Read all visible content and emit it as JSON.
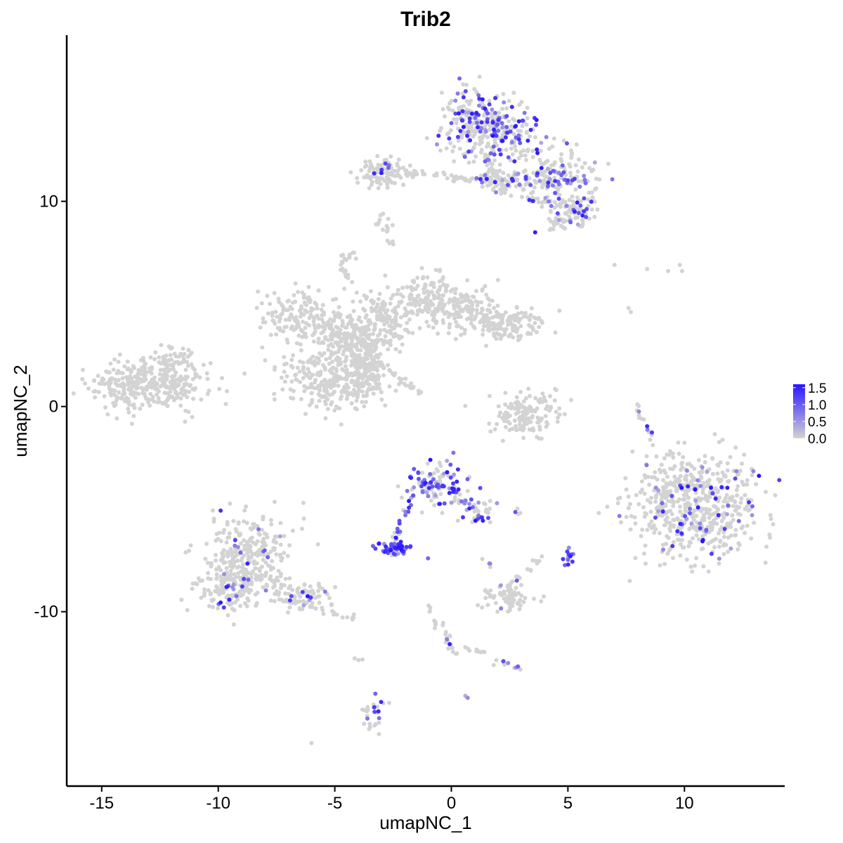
{
  "chart_data": {
    "type": "scatter",
    "title": "Trib2",
    "xlabel": "umapNC_1",
    "ylabel": "umapNC_2",
    "xlim": [
      -16.5,
      14.3
    ],
    "ylim": [
      -18.5,
      18.1
    ],
    "x_ticks": [
      -15,
      -10,
      -5,
      0,
      5,
      10
    ],
    "x_tick_labels": [
      "-15",
      "-10",
      "-5",
      "0",
      "5",
      "10"
    ],
    "y_ticks": [
      -10,
      0,
      10
    ],
    "y_tick_labels": [
      "-10",
      "0",
      "10"
    ],
    "grid": false,
    "legend": {
      "placement": "right",
      "type": "colorbar",
      "title": "",
      "min": 0,
      "max": 1.6,
      "low_color": "#d3d3d3",
      "high_color": "#2a14ff",
      "ticks": [
        0.0,
        0.5,
        1.0,
        1.5
      ],
      "tick_labels": [
        "0.0",
        "0.5",
        "1.0",
        "1.5"
      ]
    },
    "colors": {
      "low": "#d3d3d3",
      "high": "#2a14ff",
      "point_size": 3
    },
    "clusters": [
      {
        "name": "a",
        "cx": -12.9,
        "cy": 1.1,
        "sx": 1.25,
        "sy": 0.65,
        "n": 360,
        "frac": 0.0
      },
      {
        "name": "b1",
        "cx": -6.5,
        "cy": 4.5,
        "sx": 0.9,
        "sy": 0.6,
        "n": 140,
        "frac": 0.0
      },
      {
        "name": "b2",
        "cx": -4.4,
        "cy": 3.6,
        "sx": 0.8,
        "sy": 0.55,
        "n": 140,
        "frac": 0.0
      },
      {
        "name": "b3",
        "cx": -5.3,
        "cy": 1.3,
        "sx": 1.0,
        "sy": 0.8,
        "n": 240,
        "frac": 0.0
      },
      {
        "name": "b4",
        "cx": -3.7,
        "cy": 1.6,
        "sx": 0.5,
        "sy": 0.7,
        "n": 150,
        "frac": 0.0
      },
      {
        "name": "b5",
        "cx": -2.6,
        "cy": 4.5,
        "sx": 0.7,
        "sy": 0.6,
        "n": 110,
        "frac": 0.0
      },
      {
        "name": "b6",
        "cx": -1.1,
        "cy": 5.5,
        "sx": 0.5,
        "sy": 0.6,
        "n": 90,
        "frac": 0.0
      },
      {
        "name": "b7",
        "cx": 0.5,
        "cy": 4.8,
        "sx": 0.8,
        "sy": 0.55,
        "n": 130,
        "frac": 0.0
      },
      {
        "name": "b8",
        "cx": 2.3,
        "cy": 4.0,
        "sx": 0.9,
        "sy": 0.45,
        "n": 150,
        "frac": 0.0
      },
      {
        "name": "b9",
        "cx": -4.0,
        "cy": 3.0,
        "sx": 0.5,
        "sy": 0.4,
        "n": 80,
        "frac": 0.0
      },
      {
        "name": "c1",
        "cx": 0.9,
        "cy": 13.8,
        "sx": 0.6,
        "sy": 0.8,
        "n": 170,
        "frac": 0.32
      },
      {
        "name": "c2",
        "cx": 2.2,
        "cy": 13.4,
        "sx": 0.7,
        "sy": 0.8,
        "n": 150,
        "frac": 0.35
      },
      {
        "name": "c3",
        "cx": 4.3,
        "cy": 11.3,
        "sx": 1.0,
        "sy": 0.65,
        "n": 170,
        "frac": 0.3
      },
      {
        "name": "c4",
        "cx": 5.3,
        "cy": 9.6,
        "sx": 0.5,
        "sy": 0.4,
        "n": 60,
        "frac": 0.25
      },
      {
        "name": "c5",
        "cx": -2.8,
        "cy": 11.4,
        "sx": 0.55,
        "sy": 0.35,
        "n": 110,
        "frac": 0.02
      },
      {
        "name": "c6",
        "cx": 1.8,
        "cy": 11.0,
        "sx": 0.6,
        "sy": 0.4,
        "n": 50,
        "frac": 0.1
      },
      {
        "name": "c7",
        "cx": 4.6,
        "cy": 8.9,
        "sx": 0.3,
        "sy": 0.25,
        "n": 20,
        "frac": 0.2
      },
      {
        "name": "d",
        "cx": 3.1,
        "cy": -0.4,
        "sx": 0.7,
        "sy": 0.55,
        "n": 140,
        "frac": 0.0
      },
      {
        "name": "e",
        "cx": 10.5,
        "cy": -4.8,
        "sx": 1.4,
        "sy": 1.3,
        "n": 560,
        "frac": 0.1
      },
      {
        "name": "f1",
        "cx": -8.7,
        "cy": -7.4,
        "sx": 1.0,
        "sy": 1.0,
        "n": 300,
        "frac": 0.06
      },
      {
        "name": "f2",
        "cx": -9.6,
        "cy": -9.0,
        "sx": 0.7,
        "sy": 0.5,
        "n": 100,
        "frac": 0.06
      },
      {
        "name": "f3",
        "cx": -6.4,
        "cy": -9.2,
        "sx": 0.8,
        "sy": 0.35,
        "n": 70,
        "frac": 0.04
      },
      {
        "name": "g1",
        "cx": -0.7,
        "cy": -3.7,
        "sx": 0.6,
        "sy": 0.55,
        "n": 110,
        "frac": 0.5
      },
      {
        "name": "g2",
        "cx": -2.5,
        "cy": -6.9,
        "sx": 0.3,
        "sy": 0.15,
        "n": 60,
        "frac": 0.95
      },
      {
        "name": "g3",
        "cx": 1.2,
        "cy": -5.0,
        "sx": 0.35,
        "sy": 0.4,
        "n": 25,
        "frac": 0.4
      },
      {
        "name": "h",
        "cx": 2.4,
        "cy": -9.3,
        "sx": 0.55,
        "sy": 0.35,
        "n": 70,
        "frac": 0.05
      },
      {
        "name": "i",
        "cx": 5.1,
        "cy": -7.4,
        "sx": 0.12,
        "sy": 0.2,
        "n": 14,
        "frac": 0.9
      },
      {
        "name": "j",
        "cx": -3.3,
        "cy": -15.0,
        "sx": 0.25,
        "sy": 0.45,
        "n": 28,
        "frac": 0.15
      },
      {
        "name": "k",
        "cx": -12.0,
        "cy": 2.3,
        "sx": 0.5,
        "sy": 0.3,
        "n": 40,
        "frac": 0.0
      },
      {
        "name": "l",
        "cx": -4.4,
        "cy": 7.3,
        "sx": 0.2,
        "sy": 0.2,
        "n": 14,
        "frac": 0.05
      },
      {
        "name": "m",
        "cx": -2.7,
        "cy": 8.5,
        "sx": 0.15,
        "sy": 0.3,
        "n": 12,
        "frac": 0.0
      }
    ],
    "segments": [
      {
        "x1": -2.0,
        "y1": 11.5,
        "x2": 0.6,
        "y2": 11.1,
        "n": 30,
        "frac": 0.05
      },
      {
        "x1": 0.6,
        "y1": 11.1,
        "x2": 2.4,
        "y2": 10.8,
        "n": 25,
        "frac": 0.15
      },
      {
        "x1": 1.2,
        "y1": 12.5,
        "x2": 2.5,
        "y2": 10.2,
        "n": 25,
        "frac": 0.1
      },
      {
        "x1": 3.0,
        "y1": 10.2,
        "x2": 5.5,
        "y2": 9.7,
        "n": 25,
        "frac": 0.25
      },
      {
        "x1": -3.5,
        "y1": 2.4,
        "x2": -1.3,
        "y2": 0.6,
        "n": 35,
        "frac": 0.0
      },
      {
        "x1": -2.0,
        "y1": 3.0,
        "x2": -4.8,
        "y2": 6.8,
        "n": 30,
        "frac": 0.0
      },
      {
        "x1": -4.0,
        "y1": 3.1,
        "x2": -2.5,
        "y2": 3.1,
        "n": 15,
        "frac": 0.05
      },
      {
        "x1": -1.7,
        "y1": -4.4,
        "x2": -2.5,
        "y2": -6.6,
        "n": 20,
        "frac": 0.7
      },
      {
        "x1": 0.0,
        "y1": -4.0,
        "x2": 1.2,
        "y2": -5.5,
        "n": 20,
        "frac": 0.45
      },
      {
        "x1": -7.3,
        "y1": -9.4,
        "x2": -4.0,
        "y2": -10.4,
        "n": 30,
        "frac": 0.1
      },
      {
        "x1": 8.6,
        "y1": -1.5,
        "x2": 7.9,
        "y2": 0.2,
        "n": 15,
        "frac": 0.1
      },
      {
        "x1": 9.3,
        "y1": -3.8,
        "x2": 8.8,
        "y2": -5.3,
        "n": 20,
        "frac": 0.05
      },
      {
        "x1": -1.0,
        "y1": -9.5,
        "x2": -0.5,
        "y2": -11.0,
        "n": 10,
        "frac": 0.0
      },
      {
        "x1": -0.5,
        "y1": -10.5,
        "x2": 0.2,
        "y2": -12.3,
        "n": 18,
        "frac": 0.05
      },
      {
        "x1": 0.5,
        "y1": -11.8,
        "x2": 1.5,
        "y2": -12.0,
        "n": 10,
        "frac": 0.0
      },
      {
        "x1": 1.9,
        "y1": -12.4,
        "x2": 3.0,
        "y2": -12.8,
        "n": 12,
        "frac": 0.2
      },
      {
        "x1": 2.2,
        "y1": -8.9,
        "x2": 3.5,
        "y2": -7.9,
        "n": 10,
        "frac": 0.1
      },
      {
        "x1": 3.3,
        "y1": -8.0,
        "x2": 3.8,
        "y2": -7.3,
        "n": 6,
        "frac": 0.0
      },
      {
        "x1": -3.2,
        "y1": 8.8,
        "x2": -2.9,
        "y2": 9.6,
        "n": 6,
        "frac": 0.0
      },
      {
        "x1": 1.5,
        "y1": -7.4,
        "x2": 1.8,
        "y2": -7.8,
        "n": 4,
        "frac": 0.6
      },
      {
        "x1": 2.6,
        "y1": -5.1,
        "x2": 3.0,
        "y2": -5.1,
        "n": 4,
        "frac": 0.4
      },
      {
        "x1": -4.0,
        "y1": -12.0,
        "x2": -3.9,
        "y2": -12.4,
        "n": 3,
        "frac": 0.0
      }
    ],
    "points": [
      {
        "x": 7.0,
        "y": 6.9,
        "v": 0.0
      },
      {
        "x": 8.4,
        "y": 6.7,
        "v": 0.0
      },
      {
        "x": 9.3,
        "y": 6.6,
        "v": 0.0
      },
      {
        "x": 9.8,
        "y": 6.9,
        "v": 0.0
      },
      {
        "x": 9.9,
        "y": 6.6,
        "v": 0.0
      },
      {
        "x": 7.6,
        "y": 4.8,
        "v": 0.0
      },
      {
        "x": 7.7,
        "y": 4.6,
        "v": 0.0
      },
      {
        "x": -6.0,
        "y": -16.4,
        "v": 0.0
      },
      {
        "x": 0.7,
        "y": -14.2,
        "v": 0.6
      },
      {
        "x": 0.6,
        "y": -14.1,
        "v": 0.3
      },
      {
        "x": -0.9,
        "y": -2.6,
        "v": 1.6
      },
      {
        "x": -2.6,
        "y": -7.0,
        "v": 1.6
      },
      {
        "x": -2.4,
        "y": -6.9,
        "v": 1.5
      },
      {
        "x": -1.0,
        "y": -7.4,
        "v": 0.9
      },
      {
        "x": 2.6,
        "y": 14.6,
        "v": 1.4
      },
      {
        "x": 1.2,
        "y": 15.0,
        "v": 1.3
      },
      {
        "x": 2.9,
        "y": 13.9,
        "v": 1.5
      }
    ]
  }
}
